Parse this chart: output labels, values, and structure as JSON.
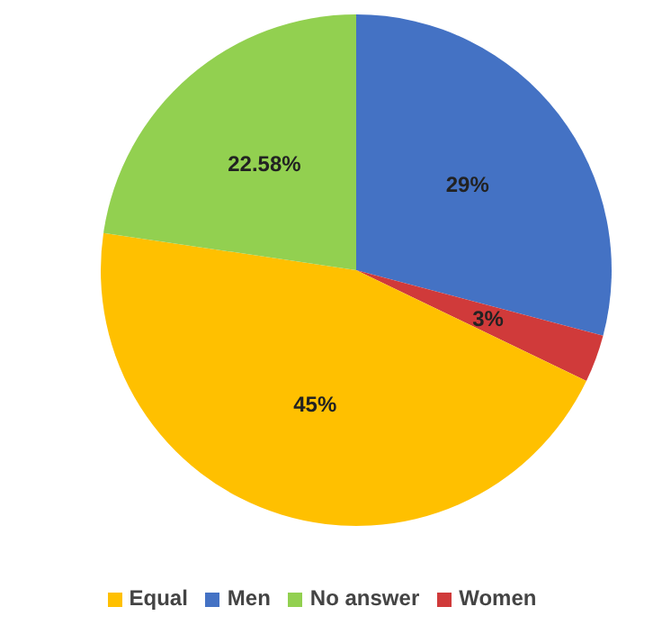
{
  "chart_data": {
    "type": "pie",
    "categories": [
      "Men",
      "Women",
      "Equal",
      "No answer"
    ],
    "values": [
      29,
      3,
      45,
      22.58
    ],
    "value_labels": [
      "29%",
      "3%",
      "45%",
      "22.58%"
    ],
    "colors": [
      "#4472c4",
      "#d03a3a",
      "#ffc000",
      "#92d050"
    ],
    "legend": "bottom"
  }
}
